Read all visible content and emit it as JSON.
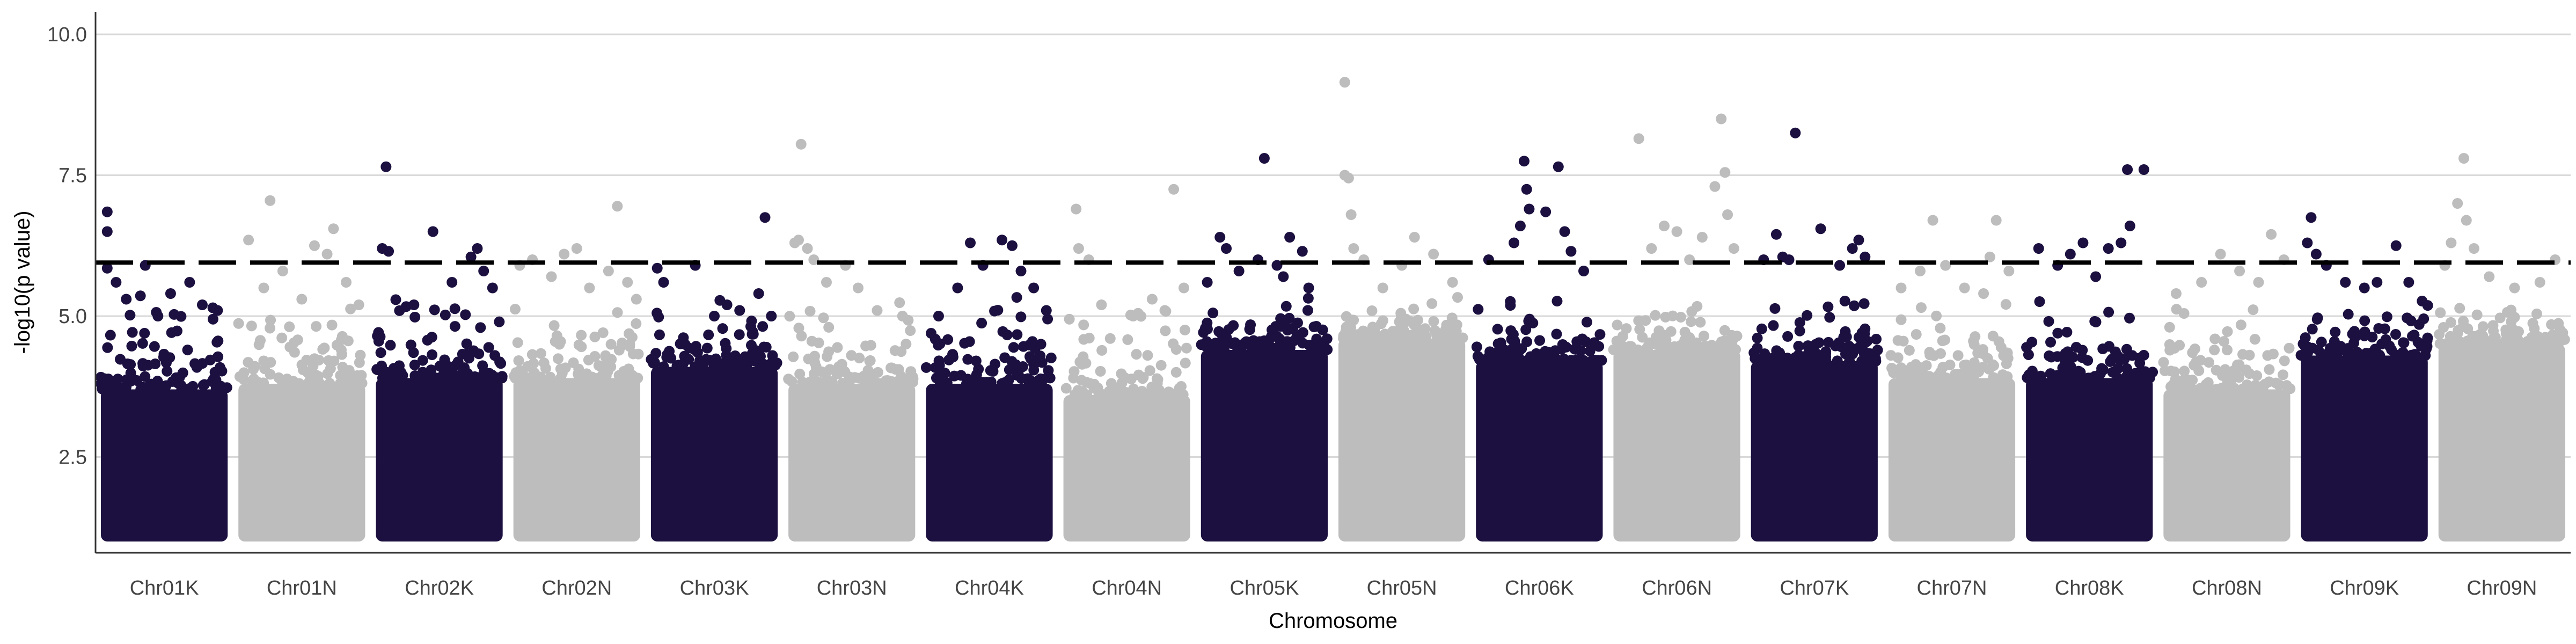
{
  "chart_data": {
    "type": "scatter",
    "subtype": "manhattan",
    "title": "",
    "xlabel": "Chromosome",
    "ylabel": "-log10(p value)",
    "ylim": [
      0.8,
      10.4
    ],
    "yticks": [
      2.5,
      5.0,
      7.5,
      10.0
    ],
    "ytick_labels": [
      "2.5",
      "5.0",
      "7.5",
      "10.0"
    ],
    "threshold": 5.95,
    "grid": "horizontal major",
    "background_baseline_min": 1.0,
    "colors": {
      "odd": "#1c1040",
      "even": "#bdbdbd",
      "threshold": "#000000",
      "grid": "#d9d9d9"
    },
    "categories": [
      "Chr01K",
      "Chr01N",
      "Chr02K",
      "Chr02N",
      "Chr03K",
      "Chr03N",
      "Chr04K",
      "Chr04N",
      "Chr05K",
      "Chr05N",
      "Chr06K",
      "Chr06N",
      "Chr07K",
      "Chr07N",
      "Chr08K",
      "Chr08N",
      "Chr09K",
      "Chr09N"
    ],
    "series": [
      {
        "chromosome": "Chr01K",
        "color": "#1c1040",
        "band_top": 3.7,
        "max": 6.85,
        "points": [
          [
            0.05,
            6.85
          ],
          [
            0.05,
            6.5
          ],
          [
            0.05,
            5.85
          ],
          [
            0.12,
            5.6
          ],
          [
            0.2,
            5.3
          ],
          [
            0.35,
            5.9
          ],
          [
            0.45,
            5.0
          ],
          [
            0.55,
            5.4
          ],
          [
            0.7,
            5.6
          ],
          [
            0.8,
            5.2
          ],
          [
            0.92,
            5.1
          ]
        ]
      },
      {
        "chromosome": "Chr01N",
        "color": "#bdbdbd",
        "band_top": 3.8,
        "max": 7.05,
        "points": [
          [
            0.08,
            6.35
          ],
          [
            0.2,
            5.5
          ],
          [
            0.25,
            7.05
          ],
          [
            0.35,
            5.8
          ],
          [
            0.5,
            5.3
          ],
          [
            0.6,
            6.25
          ],
          [
            0.7,
            6.1
          ],
          [
            0.75,
            6.55
          ],
          [
            0.85,
            5.6
          ],
          [
            0.95,
            5.2
          ]
        ]
      },
      {
        "chromosome": "Chr02K",
        "color": "#1c1040",
        "band_top": 3.9,
        "max": 7.65,
        "points": [
          [
            0.05,
            6.2
          ],
          [
            0.08,
            7.65
          ],
          [
            0.1,
            6.15
          ],
          [
            0.3,
            5.2
          ],
          [
            0.45,
            6.5
          ],
          [
            0.6,
            5.6
          ],
          [
            0.75,
            6.05
          ],
          [
            0.8,
            6.2
          ],
          [
            0.85,
            5.8
          ],
          [
            0.92,
            5.5
          ]
        ]
      },
      {
        "chromosome": "Chr02N",
        "color": "#bdbdbd",
        "band_top": 3.9,
        "max": 6.95,
        "points": [
          [
            0.05,
            5.9
          ],
          [
            0.15,
            6.0
          ],
          [
            0.3,
            5.7
          ],
          [
            0.4,
            6.1
          ],
          [
            0.5,
            6.2
          ],
          [
            0.6,
            5.5
          ],
          [
            0.75,
            5.8
          ],
          [
            0.82,
            6.95
          ],
          [
            0.9,
            5.6
          ],
          [
            0.97,
            5.3
          ]
        ]
      },
      {
        "chromosome": "Chr03K",
        "color": "#1c1040",
        "band_top": 4.1,
        "max": 6.75,
        "points": [
          [
            0.05,
            5.85
          ],
          [
            0.1,
            5.6
          ],
          [
            0.35,
            5.9
          ],
          [
            0.5,
            5.0
          ],
          [
            0.6,
            5.2
          ],
          [
            0.7,
            5.1
          ],
          [
            0.85,
            5.4
          ],
          [
            0.9,
            6.75
          ],
          [
            0.95,
            5.0
          ]
        ]
      },
      {
        "chromosome": "Chr03N",
        "color": "#bdbdbd",
        "band_top": 3.8,
        "max": 8.05,
        "points": [
          [
            0.05,
            6.3
          ],
          [
            0.08,
            6.35
          ],
          [
            0.1,
            8.05
          ],
          [
            0.15,
            6.2
          ],
          [
            0.2,
            6.0
          ],
          [
            0.3,
            5.6
          ],
          [
            0.45,
            5.9
          ],
          [
            0.55,
            5.5
          ],
          [
            0.7,
            5.1
          ],
          [
            0.9,
            5.0
          ]
        ]
      },
      {
        "chromosome": "Chr04K",
        "color": "#1c1040",
        "band_top": 3.8,
        "max": 6.35,
        "points": [
          [
            0.1,
            5.0
          ],
          [
            0.25,
            5.5
          ],
          [
            0.35,
            6.3
          ],
          [
            0.45,
            5.9
          ],
          [
            0.6,
            6.35
          ],
          [
            0.68,
            6.25
          ],
          [
            0.75,
            5.8
          ],
          [
            0.85,
            5.5
          ],
          [
            0.95,
            5.1
          ]
        ]
      },
      {
        "chromosome": "Chr04N",
        "color": "#bdbdbd",
        "band_top": 3.6,
        "max": 7.25,
        "points": [
          [
            0.1,
            6.9
          ],
          [
            0.12,
            6.2
          ],
          [
            0.2,
            6.0
          ],
          [
            0.3,
            5.2
          ],
          [
            0.55,
            5.0
          ],
          [
            0.7,
            5.3
          ],
          [
            0.8,
            5.1
          ],
          [
            0.87,
            7.25
          ],
          [
            0.95,
            5.5
          ]
        ]
      },
      {
        "chromosome": "Chr05K",
        "color": "#1c1040",
        "band_top": 4.4,
        "max": 7.8,
        "points": [
          [
            0.05,
            5.6
          ],
          [
            0.15,
            6.4
          ],
          [
            0.2,
            6.2
          ],
          [
            0.3,
            5.8
          ],
          [
            0.45,
            6.0
          ],
          [
            0.6,
            5.9
          ],
          [
            0.65,
            5.7
          ],
          [
            0.7,
            6.4
          ],
          [
            0.8,
            6.15
          ],
          [
            0.85,
            5.5
          ],
          [
            0.5,
            7.8
          ]
        ]
      },
      {
        "chromosome": "Chr05N",
        "color": "#bdbdbd",
        "band_top": 4.6,
        "max": 9.15,
        "points": [
          [
            0.05,
            9.15
          ],
          [
            0.05,
            7.5
          ],
          [
            0.08,
            7.45
          ],
          [
            0.1,
            6.8
          ],
          [
            0.12,
            6.2
          ],
          [
            0.2,
            6.0
          ],
          [
            0.35,
            5.5
          ],
          [
            0.5,
            5.9
          ],
          [
            0.6,
            6.4
          ],
          [
            0.75,
            6.1
          ],
          [
            0.9,
            5.6
          ]
        ]
      },
      {
        "chromosome": "Chr06K",
        "color": "#1c1040",
        "band_top": 4.2,
        "max": 7.75,
        "points": [
          [
            0.1,
            6.0
          ],
          [
            0.3,
            6.3
          ],
          [
            0.35,
            6.6
          ],
          [
            0.38,
            7.75
          ],
          [
            0.4,
            7.25
          ],
          [
            0.42,
            6.9
          ],
          [
            0.55,
            6.85
          ],
          [
            0.65,
            7.65
          ],
          [
            0.7,
            6.5
          ],
          [
            0.75,
            6.15
          ],
          [
            0.85,
            5.8
          ]
        ]
      },
      {
        "chromosome": "Chr06N",
        "color": "#bdbdbd",
        "band_top": 4.4,
        "max": 8.5,
        "points": [
          [
            0.2,
            8.15
          ],
          [
            0.3,
            6.2
          ],
          [
            0.4,
            6.6
          ],
          [
            0.5,
            6.5
          ],
          [
            0.6,
            6.0
          ],
          [
            0.7,
            6.4
          ],
          [
            0.8,
            7.3
          ],
          [
            0.85,
            8.5
          ],
          [
            0.88,
            7.55
          ],
          [
            0.9,
            6.8
          ],
          [
            0.95,
            6.2
          ]
        ]
      },
      {
        "chromosome": "Chr07K",
        "color": "#1c1040",
        "band_top": 4.2,
        "max": 8.25,
        "points": [
          [
            0.1,
            6.0
          ],
          [
            0.2,
            6.45
          ],
          [
            0.25,
            6.05
          ],
          [
            0.3,
            6.0
          ],
          [
            0.35,
            8.25
          ],
          [
            0.55,
            6.55
          ],
          [
            0.7,
            5.9
          ],
          [
            0.8,
            6.2
          ],
          [
            0.85,
            6.35
          ],
          [
            0.9,
            6.05
          ]
        ]
      },
      {
        "chromosome": "Chr07N",
        "color": "#bdbdbd",
        "band_top": 3.9,
        "max": 6.7,
        "points": [
          [
            0.1,
            5.5
          ],
          [
            0.25,
            5.8
          ],
          [
            0.35,
            6.7
          ],
          [
            0.45,
            5.9
          ],
          [
            0.6,
            5.5
          ],
          [
            0.75,
            5.4
          ],
          [
            0.8,
            6.05
          ],
          [
            0.85,
            6.7
          ],
          [
            0.95,
            5.8
          ]
        ]
      },
      {
        "chromosome": "Chr08K",
        "color": "#1c1040",
        "band_top": 3.9,
        "max": 7.6,
        "points": [
          [
            0.1,
            6.2
          ],
          [
            0.25,
            5.9
          ],
          [
            0.35,
            6.1
          ],
          [
            0.45,
            6.3
          ],
          [
            0.55,
            5.7
          ],
          [
            0.65,
            6.2
          ],
          [
            0.75,
            6.3
          ],
          [
            0.8,
            7.6
          ],
          [
            0.82,
            6.6
          ],
          [
            0.93,
            7.6
          ]
        ]
      },
      {
        "chromosome": "Chr08N",
        "color": "#bdbdbd",
        "band_top": 3.7,
        "max": 6.45,
        "points": [
          [
            0.1,
            5.4
          ],
          [
            0.3,
            5.6
          ],
          [
            0.45,
            6.1
          ],
          [
            0.6,
            5.8
          ],
          [
            0.75,
            5.6
          ],
          [
            0.85,
            6.45
          ],
          [
            0.95,
            6.0
          ]
        ]
      },
      {
        "chromosome": "Chr09K",
        "color": "#1c1040",
        "band_top": 4.3,
        "max": 6.75,
        "points": [
          [
            0.05,
            6.3
          ],
          [
            0.08,
            6.75
          ],
          [
            0.12,
            6.1
          ],
          [
            0.2,
            5.9
          ],
          [
            0.35,
            5.6
          ],
          [
            0.5,
            5.5
          ],
          [
            0.6,
            5.6
          ],
          [
            0.75,
            6.25
          ],
          [
            0.85,
            5.6
          ]
        ]
      },
      {
        "chromosome": "Chr09N",
        "color": "#bdbdbd",
        "band_top": 4.5,
        "max": 7.8,
        "points": [
          [
            0.05,
            5.9
          ],
          [
            0.1,
            6.3
          ],
          [
            0.15,
            7.0
          ],
          [
            0.2,
            7.8
          ],
          [
            0.22,
            6.7
          ],
          [
            0.28,
            6.2
          ],
          [
            0.4,
            5.7
          ],
          [
            0.6,
            5.5
          ],
          [
            0.8,
            5.6
          ],
          [
            0.92,
            6.0
          ]
        ]
      }
    ]
  }
}
